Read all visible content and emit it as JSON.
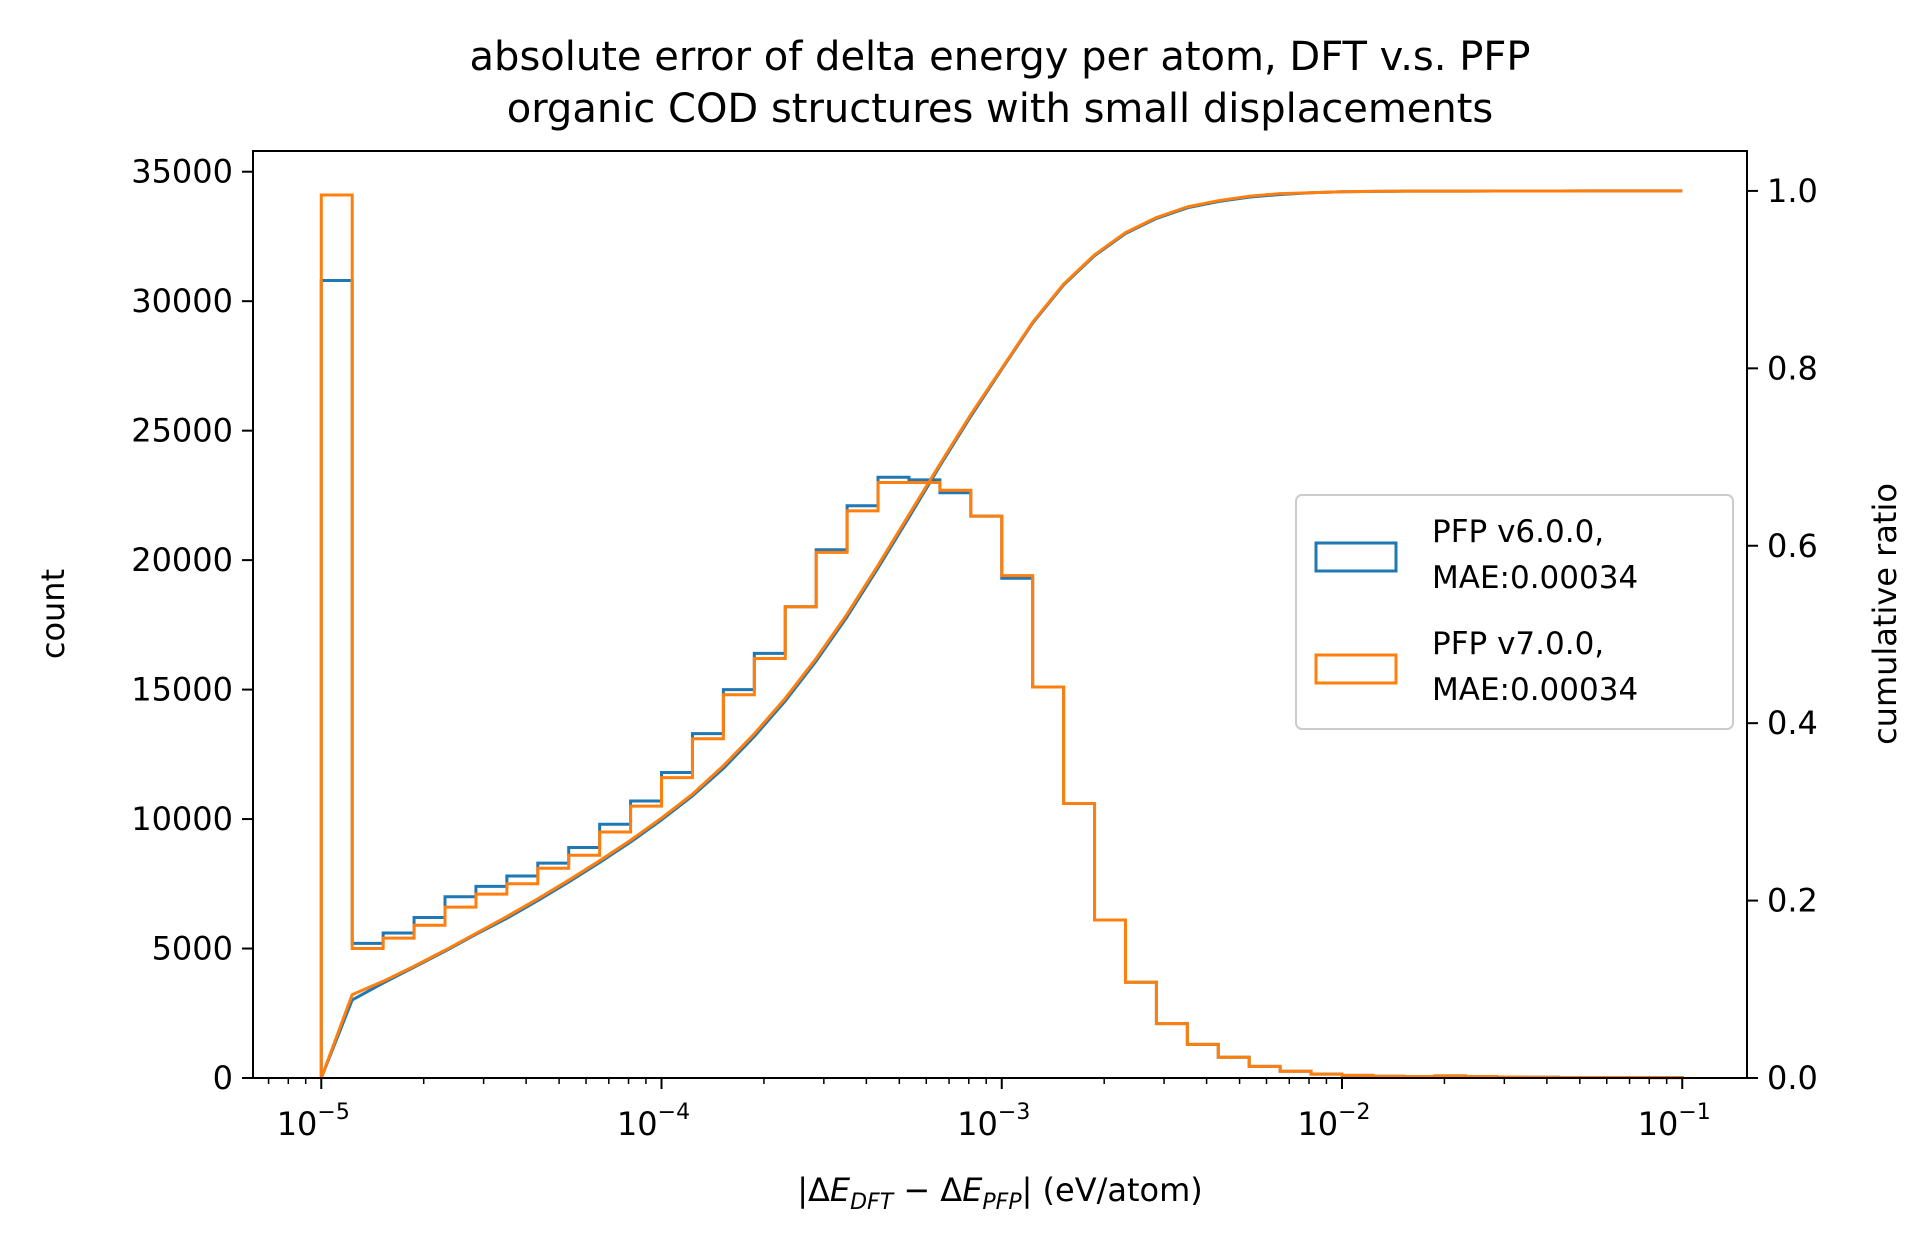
{
  "chart_data": {
    "type": "histogram",
    "title": "absolute error of delta energy per atom, DFT v.s. PFP",
    "subtitle": "organic COD structures with small displacements",
    "xlabel": "|ΔE_DFT − ΔE_PFP| (eV/atom)",
    "xlabel_parts": {
      "pipe_open": "|Δ",
      "e1": "E",
      "s1": "DFT",
      "minus": " − Δ",
      "e2": "E",
      "s2": "PFP",
      "suffix": "| (eV/atom)"
    },
    "ylabel": "count",
    "y2label": "cumulative ratio",
    "xscale": "log",
    "xlim": [
      6.3e-06,
      0.155
    ],
    "ylim": [
      0,
      35800
    ],
    "y2lim": [
      0,
      1.045
    ],
    "xticks": [
      {
        "base": "10",
        "exp": "−5",
        "value": 1e-05
      },
      {
        "base": "10",
        "exp": "−4",
        "value": 0.0001
      },
      {
        "base": "10",
        "exp": "−3",
        "value": 0.001
      },
      {
        "base": "10",
        "exp": "−2",
        "value": 0.01
      },
      {
        "base": "10",
        "exp": "−1",
        "value": 0.1
      }
    ],
    "yticks": [
      {
        "label": "0",
        "value": 0
      },
      {
        "label": "5000",
        "value": 5000
      },
      {
        "label": "10000",
        "value": 10000
      },
      {
        "label": "15000",
        "value": 15000
      },
      {
        "label": "20000",
        "value": 20000
      },
      {
        "label": "25000",
        "value": 25000
      },
      {
        "label": "30000",
        "value": 30000
      },
      {
        "label": "35000",
        "value": 35000
      }
    ],
    "y2ticks": [
      {
        "label": "0.0",
        "value": 0.0
      },
      {
        "label": "0.2",
        "value": 0.2
      },
      {
        "label": "0.4",
        "value": 0.4
      },
      {
        "label": "0.6",
        "value": 0.6
      },
      {
        "label": "0.8",
        "value": 0.8
      },
      {
        "label": "1.0",
        "value": 1.0
      }
    ],
    "bins": {
      "start_exp": -5,
      "end_exp": -1,
      "count": 44
    },
    "series": [
      {
        "name": "PFP v6.0.0,",
        "mae": "MAE:0.00034",
        "color": "#1f77b4",
        "counts": [
          30800,
          5200,
          5600,
          6200,
          7000,
          7400,
          7800,
          8300,
          8900,
          9800,
          10700,
          11800,
          13300,
          15000,
          16400,
          18200,
          20400,
          22100,
          23200,
          23100,
          22600,
          21700,
          19300,
          15100,
          10600,
          6100,
          3700,
          2100,
          1300,
          800,
          450,
          260,
          150,
          100,
          70,
          60,
          80,
          60,
          40,
          30,
          20,
          20,
          20,
          15
        ],
        "cumulative": [
          0,
          0.088,
          0.107,
          0.125,
          0.143,
          0.162,
          0.18,
          0.2,
          0.221,
          0.243,
          0.266,
          0.291,
          0.318,
          0.349,
          0.385,
          0.425,
          0.47,
          0.52,
          0.575,
          0.632,
          0.69,
          0.746,
          0.799,
          0.851,
          0.894,
          0.927,
          0.952,
          0.969,
          0.981,
          0.988,
          0.993,
          0.996,
          0.998,
          0.999,
          0.9995,
          0.9997,
          0.9998,
          0.9998,
          0.9999,
          0.9999,
          0.9999,
          1.0,
          1.0,
          1.0,
          1.0
        ]
      },
      {
        "name": "PFP v7.0.0,",
        "mae": "MAE:0.00034",
        "color": "#ff7f0e",
        "counts": [
          34100,
          5000,
          5400,
          5900,
          6600,
          7100,
          7500,
          8100,
          8600,
          9500,
          10500,
          11600,
          13100,
          14800,
          16200,
          18200,
          20300,
          21900,
          23000,
          23000,
          22700,
          21700,
          19400,
          15100,
          10600,
          6100,
          3700,
          2100,
          1300,
          800,
          450,
          260,
          150,
          100,
          70,
          60,
          80,
          60,
          40,
          30,
          20,
          20,
          20,
          15
        ],
        "cumulative": [
          0,
          0.094,
          0.109,
          0.126,
          0.144,
          0.163,
          0.182,
          0.202,
          0.223,
          0.245,
          0.268,
          0.293,
          0.32,
          0.352,
          0.388,
          0.428,
          0.473,
          0.523,
          0.578,
          0.635,
          0.692,
          0.748,
          0.8,
          0.852,
          0.895,
          0.928,
          0.953,
          0.97,
          0.982,
          0.989,
          0.994,
          0.997,
          0.998,
          0.999,
          0.9995,
          0.9997,
          0.9998,
          0.9998,
          0.9999,
          0.9999,
          0.9999,
          1.0,
          1.0,
          1.0,
          1.0
        ]
      }
    ],
    "legend": {
      "placement": "right-center"
    }
  }
}
